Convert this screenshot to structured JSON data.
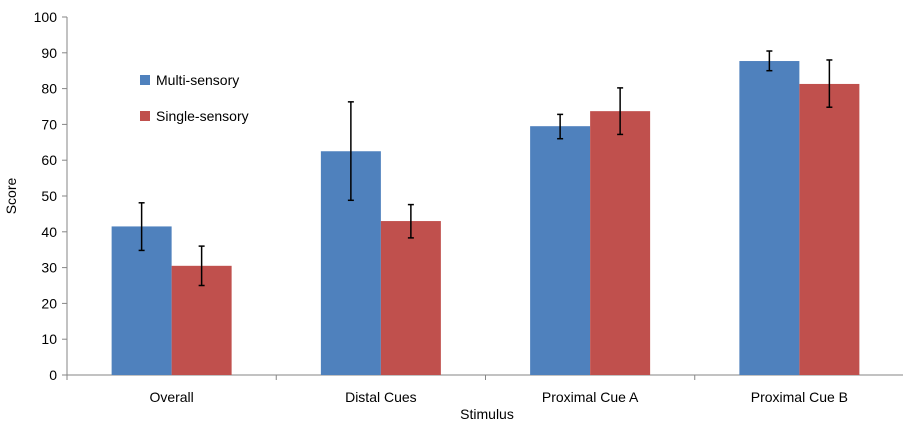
{
  "chart_data": {
    "type": "bar",
    "title": "",
    "xlabel": "Stimulus",
    "ylabel": "Score",
    "ylim": [
      0,
      100
    ],
    "yticks": [
      0,
      10,
      20,
      30,
      40,
      50,
      60,
      70,
      80,
      90,
      100
    ],
    "grid": false,
    "legend_position": "top-left",
    "categories": [
      "Overall",
      "Distal Cues",
      "Proximal Cue A",
      "Proximal Cue B"
    ],
    "series": [
      {
        "name": "Multi-sensory",
        "color": "#4f81bd",
        "values": [
          41.5,
          62.5,
          69.5,
          87.7
        ],
        "error_low": [
          34.8,
          48.8,
          66.0,
          85.0
        ],
        "error_high": [
          48.1,
          76.3,
          72.8,
          90.5
        ]
      },
      {
        "name": "Single-sensory",
        "color": "#c0504d",
        "values": [
          30.5,
          43.0,
          73.7,
          81.3
        ],
        "error_low": [
          25.0,
          38.3,
          67.2,
          74.8
        ],
        "error_high": [
          36.0,
          47.6,
          80.2,
          88.0
        ]
      }
    ]
  }
}
